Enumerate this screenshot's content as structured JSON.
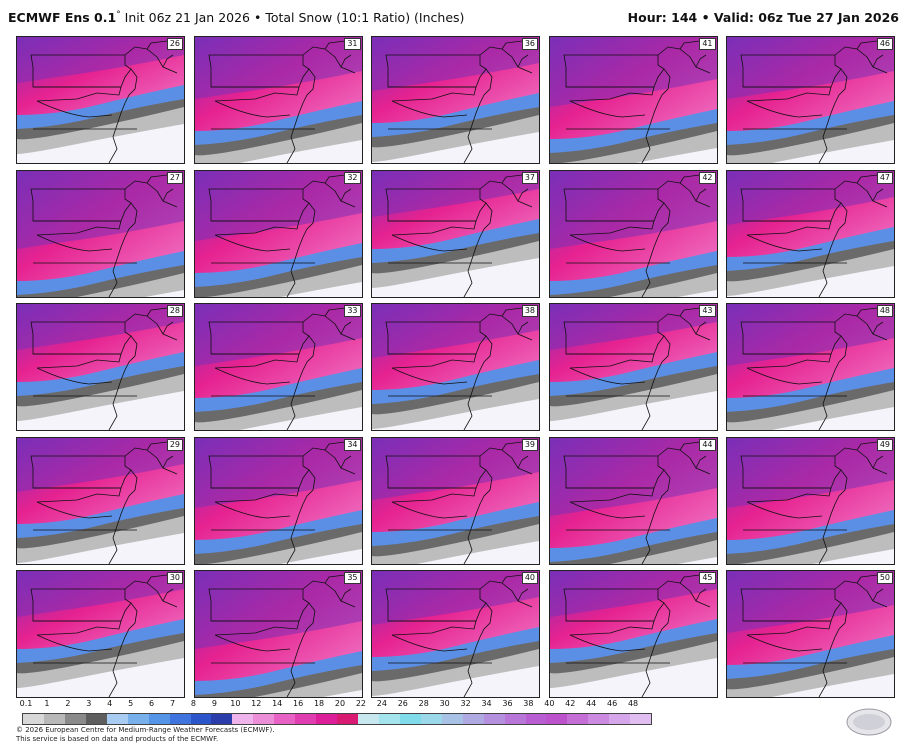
{
  "header": {
    "model": "ECMWF Ens 0.1",
    "model_suffix": "°",
    "description": " Init 06z 21 Jan 2026 • Total Snow (10:1 Ratio) (Inches)",
    "hour_valid": "Hour: 144 • Valid: 06z Tue 27 Jan 2026"
  },
  "members": [
    "26",
    "31",
    "36",
    "41",
    "46",
    "27",
    "32",
    "37",
    "42",
    "47",
    "28",
    "33",
    "38",
    "43",
    "48",
    "29",
    "34",
    "39",
    "44",
    "49",
    "30",
    "35",
    "40",
    "45",
    "50"
  ],
  "colorbar": {
    "ticks": [
      "0.1",
      "1",
      "2",
      "3",
      "4",
      "5",
      "6",
      "7",
      "8",
      "9",
      "10",
      "12",
      "14",
      "16",
      "18",
      "20",
      "22",
      "24",
      "26",
      "28",
      "30",
      "32",
      "34",
      "36",
      "38",
      "40",
      "42",
      "44",
      "46",
      "48"
    ],
    "colors": [
      "#d8d8d8",
      "#b8b8b8",
      "#8a8a8a",
      "#5e5e5e",
      "#a8ccf2",
      "#78b0ec",
      "#5595e8",
      "#3f74df",
      "#2c55cc",
      "#2a3dab",
      "#f0b4ec",
      "#ec8ed8",
      "#e862c6",
      "#e03db0",
      "#dc1f98",
      "#d81a72",
      "#c8e8f0",
      "#a4e4ec",
      "#80dcea",
      "#9ad8ea",
      "#a8c2e6",
      "#b0aae2",
      "#b590de",
      "#b876d8",
      "#b85ed2",
      "#bc52cc",
      "#c46ed6",
      "#cc8ae0",
      "#d6a6ea",
      "#e0bef2"
    ]
  },
  "map_colors": {
    "heavy": "#e62290",
    "purple": "#7a2fb8",
    "pink_light": "#f07ac8",
    "blue": "#5b8fe6",
    "blue_dark": "#3a55c8",
    "gray_dark": "#6a6a6a",
    "gray_light": "#bdbdbd",
    "bare": "#f4f4fa"
  },
  "footer": {
    "line1": "© 2026 European Centre for Medium-Range Weather Forecasts (ECMWF).",
    "line2": "This service is based on data and products of the ECMWF."
  },
  "logo": {
    "text": "WeatherBELL"
  }
}
